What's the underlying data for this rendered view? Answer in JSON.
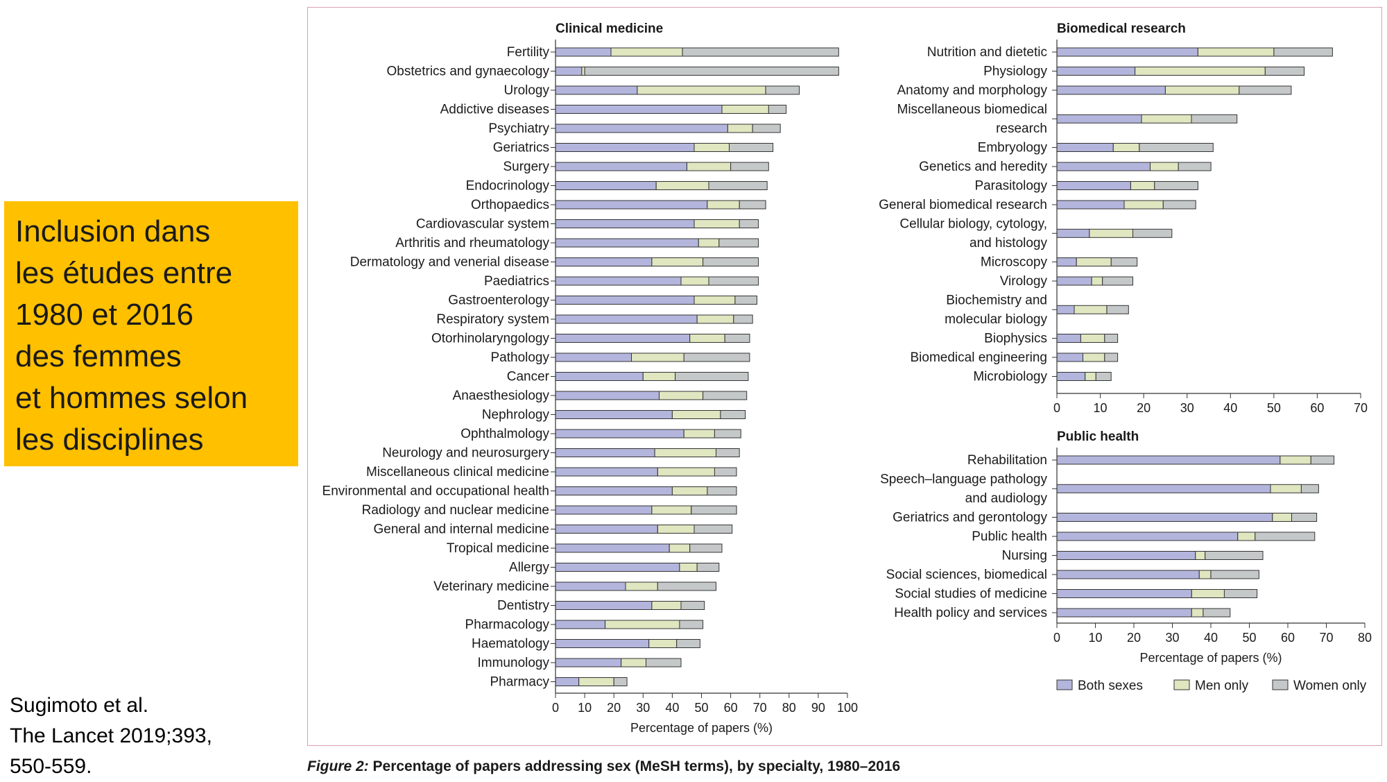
{
  "slide": {
    "callout_lines": [
      "Inclusion dans",
      "les études entre",
      "1980 et 2016",
      "des femmes",
      "et hommes selon",
      "les disciplines"
    ],
    "citation_lines": [
      "Sugimoto et al.",
      "The Lancet 2019;393,",
      "550-559."
    ],
    "caption_lead": "Figure 2:",
    "caption_rest": " Percentage of papers addressing sex (MeSH terms), by specialty, 1980–2016"
  },
  "colors": {
    "both": "#b3b5dc",
    "men": "#dfe6c0",
    "women": "#c5c8c9",
    "outline": "#333333",
    "frame": "#d9a0b0"
  },
  "legend": {
    "both": "Both sexes",
    "men": "Men only",
    "women": "Women only"
  },
  "chart_data": [
    {
      "id": "clinical",
      "type": "bar",
      "stacked": true,
      "orientation": "horizontal",
      "title": "Clinical medicine",
      "xlabel": "Percentage of papers (%)",
      "xlim": [
        0,
        100
      ],
      "xticks": [
        "0",
        "10",
        "20",
        "30",
        "40",
        "50",
        "60",
        "70",
        "80",
        "90",
        "100"
      ],
      "categories": [
        [
          "Fertility"
        ],
        [
          "Obstetrics and gynaecology"
        ],
        [
          "Urology"
        ],
        [
          "Addictive diseases"
        ],
        [
          "Psychiatry"
        ],
        [
          "Geriatrics"
        ],
        [
          "Surgery"
        ],
        [
          "Endocrinology"
        ],
        [
          "Orthopaedics"
        ],
        [
          "Cardiovascular system"
        ],
        [
          "Arthritis and rheumatology"
        ],
        [
          "Dermatology and venerial disease"
        ],
        [
          "Paediatrics"
        ],
        [
          "Gastroenterology"
        ],
        [
          "Respiratory system"
        ],
        [
          "Otorhinolaryngology"
        ],
        [
          "Pathology"
        ],
        [
          "Cancer"
        ],
        [
          "Anaesthesiology"
        ],
        [
          "Nephrology"
        ],
        [
          "Ophthalmology"
        ],
        [
          "Neurology and neurosurgery"
        ],
        [
          "Miscellaneous clinical medicine"
        ],
        [
          "Environmental and occupational health"
        ],
        [
          "Radiology and nuclear medicine"
        ],
        [
          "General and internal medicine"
        ],
        [
          "Tropical medicine"
        ],
        [
          "Allergy"
        ],
        [
          "Veterinary medicine"
        ],
        [
          "Dentistry"
        ],
        [
          "Pharmacology"
        ],
        [
          "Haematology"
        ],
        [
          "Immunology"
        ],
        [
          "Pharmacy"
        ]
      ],
      "series": [
        {
          "name": "Both sexes",
          "values": [
            19,
            9,
            28,
            57,
            59,
            47.5,
            45,
            34.5,
            52,
            47.5,
            49,
            33,
            43,
            47.5,
            48.5,
            46,
            26,
            30,
            35.5,
            40,
            44,
            34,
            35,
            40,
            33,
            35,
            39,
            42.5,
            24,
            33,
            17,
            32,
            22.5,
            8
          ]
        },
        {
          "name": "Men only",
          "values": [
            24.5,
            1,
            44,
            16,
            8.5,
            12,
            15,
            18,
            11,
            15.5,
            7,
            17.5,
            9.5,
            14,
            12.5,
            12,
            18,
            11,
            15,
            16.5,
            10.5,
            21,
            19.5,
            12,
            13.5,
            12.5,
            7,
            6,
            11,
            10,
            25.5,
            9.5,
            8.5,
            12
          ]
        },
        {
          "name": "Women only",
          "values": [
            53.5,
            87,
            11.5,
            6,
            9.5,
            15,
            13,
            20,
            9,
            6.5,
            13.5,
            19,
            17,
            7.5,
            6.5,
            8.5,
            22.5,
            25,
            15,
            8.5,
            9,
            8,
            7.5,
            10,
            15.5,
            13,
            11,
            7.5,
            20,
            8,
            8,
            8,
            12,
            4.5
          ]
        }
      ]
    },
    {
      "id": "biomedical",
      "type": "bar",
      "stacked": true,
      "orientation": "horizontal",
      "title": "Biomedical research",
      "xlabel": "",
      "xlim": [
        0,
        70
      ],
      "xticks": [
        "0",
        "10",
        "20",
        "30",
        "40",
        "50",
        "60",
        "70"
      ],
      "categories": [
        [
          "Nutrition and dietetic"
        ],
        [
          "Physiology"
        ],
        [
          "Anatomy and morphology"
        ],
        [
          "Miscellaneous biomedical",
          "research"
        ],
        [
          "Embryology"
        ],
        [
          "Genetics and heredity"
        ],
        [
          "Parasitology"
        ],
        [
          "General biomedical research"
        ],
        [
          "Cellular biology, cytology,",
          "and histology"
        ],
        [
          "Microscopy"
        ],
        [
          "Virology"
        ],
        [
          "Biochemistry and",
          "molecular biology"
        ],
        [
          "Biophysics"
        ],
        [
          "Biomedical engineering"
        ],
        [
          "Microbiology"
        ]
      ],
      "series": [
        {
          "name": "Both sexes",
          "values": [
            32.5,
            18,
            25,
            19.5,
            13,
            21.5,
            17,
            15.5,
            7.5,
            4.5,
            8,
            4,
            5.5,
            6,
            6.5
          ]
        },
        {
          "name": "Men only",
          "values": [
            17.5,
            30,
            17,
            11.5,
            6,
            6.5,
            5.5,
            9,
            10,
            8,
            2.5,
            7.5,
            5.5,
            5,
            2.5
          ]
        },
        {
          "name": "Women only",
          "values": [
            13.5,
            9,
            12,
            10.5,
            17,
            7.5,
            10,
            7.5,
            9,
            6,
            7,
            5,
            3,
            3,
            3.5
          ]
        }
      ]
    },
    {
      "id": "public",
      "type": "bar",
      "stacked": true,
      "orientation": "horizontal",
      "title": "Public health",
      "xlabel": "Percentage of papers (%)",
      "xlim": [
        0,
        80
      ],
      "xticks": [
        "0",
        "10",
        "20",
        "30",
        "40",
        "50",
        "60",
        "70",
        "80"
      ],
      "categories": [
        [
          "Rehabilitation"
        ],
        [
          "Speech–language pathology",
          "and audiology"
        ],
        [
          "Geriatrics and gerontology"
        ],
        [
          "Public health"
        ],
        [
          "Nursing"
        ],
        [
          "Social sciences, biomedical"
        ],
        [
          "Social studies of medicine"
        ],
        [
          "Health policy and services"
        ]
      ],
      "series": [
        {
          "name": "Both sexes",
          "values": [
            58,
            55.5,
            56,
            47,
            36,
            37,
            35,
            35
          ]
        },
        {
          "name": "Men only",
          "values": [
            8,
            8,
            5,
            4.5,
            2.5,
            3,
            8.5,
            3
          ]
        },
        {
          "name": "Women only",
          "values": [
            6,
            4.5,
            6.5,
            15.5,
            15,
            12.5,
            8.5,
            7
          ]
        }
      ]
    }
  ]
}
